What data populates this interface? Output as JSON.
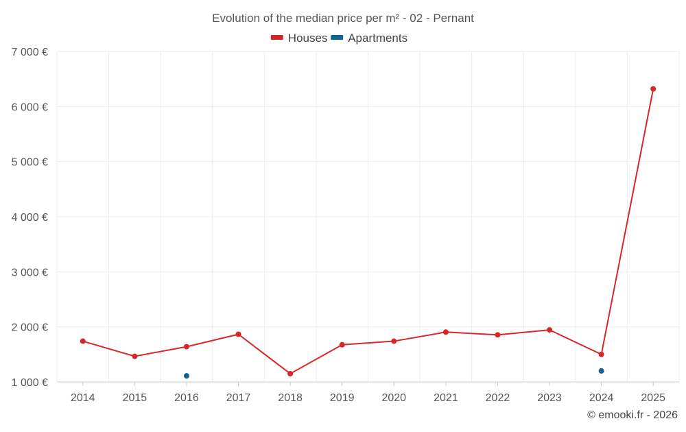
{
  "chart_data": {
    "type": "line",
    "title": "Evolution of the median price per m² - 02 - Pernant",
    "xlabel": "",
    "ylabel": "",
    "categories": [
      "2014",
      "2015",
      "2016",
      "2017",
      "2018",
      "2019",
      "2020",
      "2021",
      "2022",
      "2023",
      "2024",
      "2025"
    ],
    "ylim": [
      1000,
      7000
    ],
    "yticks": [
      1000,
      2000,
      3000,
      4000,
      5000,
      6000,
      7000
    ],
    "ytick_labels": [
      "1 000 €",
      "2 000 €",
      "3 000 €",
      "4 000 €",
      "5 000 €",
      "6 000 €",
      "7 000 €"
    ],
    "grid": true,
    "legend_position": "top-center",
    "series": [
      {
        "name": "Houses",
        "color": "#d62728",
        "values": [
          1740,
          1465,
          1640,
          1865,
          1150,
          1675,
          1740,
          1905,
          1855,
          1945,
          1500,
          6320
        ]
      },
      {
        "name": "Apartments",
        "color": "#0e6496",
        "values": [
          null,
          null,
          1110,
          null,
          null,
          null,
          null,
          null,
          null,
          null,
          1200,
          null
        ]
      }
    ],
    "footer": "© emooki.fr - 2026"
  }
}
